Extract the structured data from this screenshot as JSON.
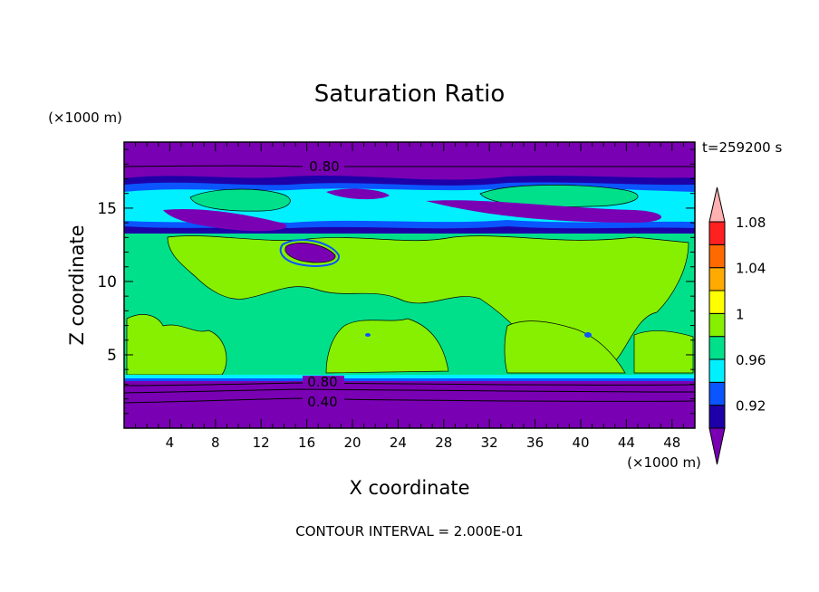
{
  "chart_data": {
    "type": "heatmap",
    "title": "Saturation Ratio",
    "xlabel": "X coordinate",
    "ylabel": "Z coordinate",
    "x_units": "(×1000 m)",
    "y_units": "(×1000 m)",
    "time_label": "t=259200 s",
    "footer": "CONTOUR INTERVAL = 2.000E-01",
    "xlim": [
      0,
      50
    ],
    "ylim": [
      0,
      19.5
    ],
    "x_ticks": [
      4,
      8,
      12,
      16,
      20,
      24,
      28,
      32,
      36,
      40,
      44,
      48
    ],
    "y_ticks": [
      5,
      10,
      15
    ],
    "contour_labels": [
      {
        "text": "0.80",
        "x": 17.5,
        "z": 18.2
      },
      {
        "text": "0.80",
        "x": 17.0,
        "z": 3.1
      },
      {
        "text": "0.40",
        "x": 17.0,
        "z": 1.7
      }
    ],
    "colorbar": {
      "levels": [
        0.92,
        0.94,
        0.96,
        0.98,
        1,
        1.02,
        1.04,
        1.06,
        1.08,
        1.1
      ],
      "labels": [
        "0.92",
        "0.96",
        "1",
        "1.04",
        "1.08"
      ],
      "colors": [
        "#7a00b4",
        "#1e00a8",
        "#0a55ff",
        "#00f0ff",
        "#00e08a",
        "#86f000",
        "#ffff00",
        "#ffaa00",
        "#ff6a00",
        "#ff2020",
        "#ffb0b0"
      ],
      "extend": "both"
    },
    "layers": [
      {
        "z_range": [
          0,
          3.6
        ],
        "value": "< 0.92",
        "color": "#7a00b4"
      },
      {
        "z_range": [
          3.6,
          13.5
        ],
        "value": "0.98–1.02",
        "color": "#00e08a / #86f000"
      },
      {
        "z_range": [
          13.5,
          17.2
        ],
        "value": "0.92–1.00 (mixed)",
        "color": "#1e00a8 / #0a55ff / #00f0ff"
      },
      {
        "z_range": [
          17.2,
          19.5
        ],
        "value": "< 0.92",
        "color": "#7a00b4"
      }
    ]
  }
}
